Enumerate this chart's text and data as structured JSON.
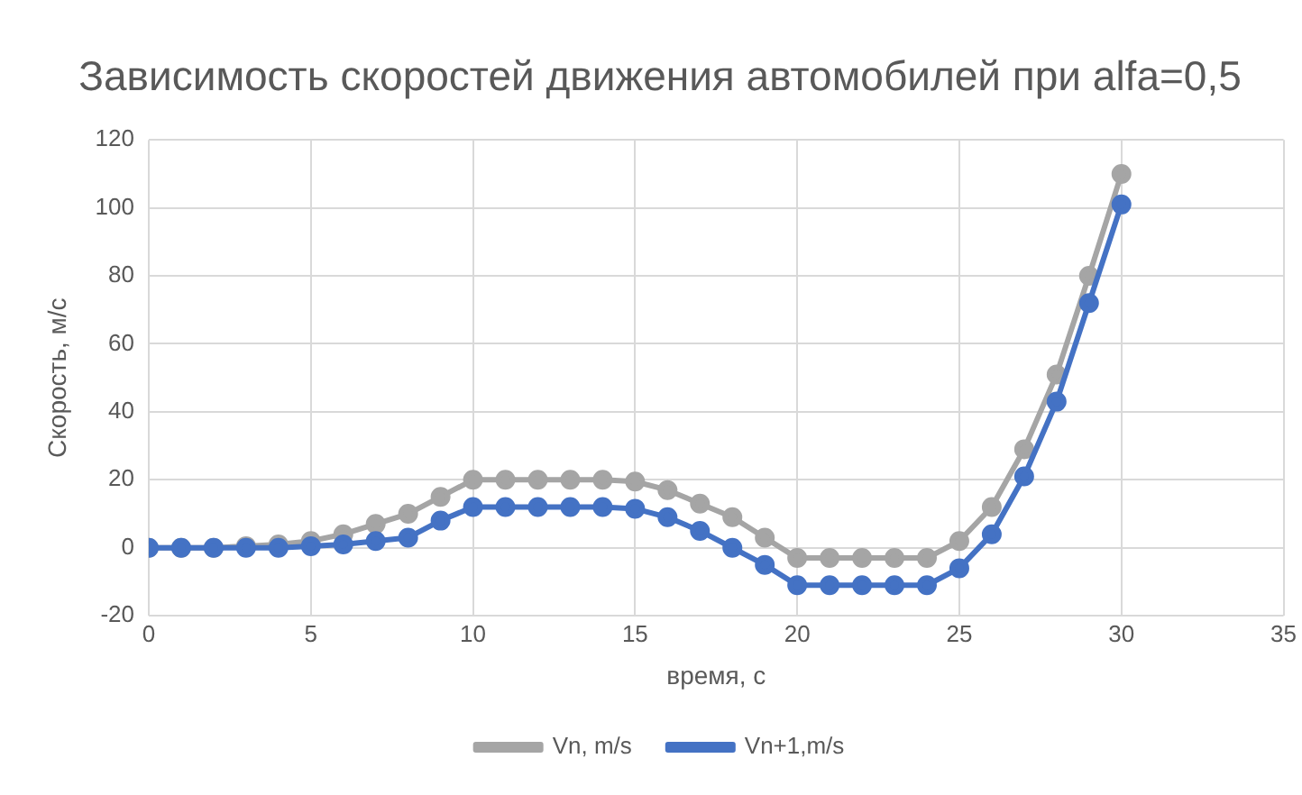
{
  "chart_data": {
    "type": "line",
    "title": "Зависимость скоростей движения автомобилей при alfa=0,5",
    "xlabel": "время, с",
    "ylabel": "Скорость, м/с",
    "x": [
      0,
      1,
      2,
      3,
      4,
      5,
      6,
      7,
      8,
      9,
      10,
      11,
      12,
      13,
      14,
      15,
      16,
      17,
      18,
      19,
      20,
      21,
      22,
      23,
      24,
      25,
      26,
      27,
      28,
      29,
      30
    ],
    "series": [
      {
        "name": "Vn, m/s",
        "color": "#a5a5a5",
        "values": [
          0,
          0,
          0,
          0.5,
          1,
          2,
          4,
          7,
          10,
          15,
          20,
          20,
          20,
          20,
          20,
          19.5,
          17,
          13,
          9,
          3,
          -3,
          -3,
          -3,
          -3,
          -3,
          2,
          12,
          29,
          51,
          80,
          110
        ]
      },
      {
        "name": "Vn+1,m/s",
        "color": "#4472c4",
        "values": [
          0,
          0,
          0,
          0,
          0,
          0.5,
          1,
          2,
          3,
          8,
          12,
          12,
          12,
          12,
          12,
          11.5,
          9,
          5,
          0,
          -5,
          -11,
          -11,
          -11,
          -11,
          -11,
          -6,
          4,
          21,
          43,
          72,
          101
        ]
      }
    ],
    "xlim": [
      0,
      35
    ],
    "xticks": [
      0,
      5,
      10,
      15,
      20,
      25,
      30,
      35
    ],
    "ylim": [
      -20,
      120
    ],
    "yticks": [
      -20,
      0,
      20,
      40,
      60,
      80,
      100,
      120
    ],
    "grid": true,
    "legend": "bottom",
    "marker": "circle",
    "line_style": "solid"
  }
}
